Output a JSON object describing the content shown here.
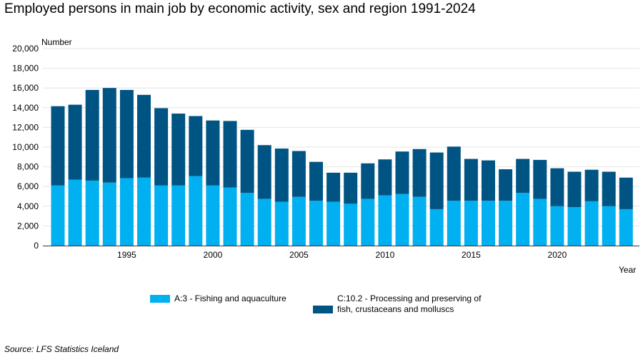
{
  "title": "Employed persons in main job by economic activity, sex and region 1991-2024",
  "source": "Source: LFS Statistics Iceland",
  "colors": {
    "fishing": "#00b0f0",
    "processing": "#005483",
    "grid": "#e4e4e4",
    "axis": "#333333"
  },
  "chart_data": {
    "type": "bar",
    "stacked": true,
    "ylabel": "Number",
    "xlabel": "Year",
    "ylim": [
      0,
      20000
    ],
    "y_ticks": [
      "0",
      "2,000",
      "4,000",
      "6,000",
      "8,000",
      "10,000",
      "12,000",
      "14,000",
      "16,000",
      "18,000",
      "20,000"
    ],
    "x_tick_labels": [
      "1995",
      "2000",
      "2005",
      "2010",
      "2015",
      "2020"
    ],
    "categories": [
      1991,
      1992,
      1993,
      1994,
      1995,
      1996,
      1997,
      1998,
      1999,
      2000,
      2001,
      2002,
      2003,
      2004,
      2005,
      2006,
      2007,
      2008,
      2009,
      2010,
      2011,
      2012,
      2013,
      2014,
      2015,
      2016,
      2017,
      2018,
      2019,
      2020,
      2021,
      2022,
      2023,
      2024
    ],
    "series": [
      {
        "name": "A:3 - Fishing and aquaculture",
        "color": "#00b0f0",
        "values": [
          6100,
          6700,
          6600,
          6400,
          6850,
          6900,
          6100,
          6100,
          7050,
          6100,
          5900,
          5350,
          4750,
          4450,
          4950,
          4550,
          4450,
          4250,
          4750,
          5100,
          5250,
          4950,
          3700,
          4550,
          4550,
          4550,
          4550,
          5350,
          4750,
          4000,
          3900,
          4500,
          4000,
          3700
        ]
      },
      {
        "name": "C:10.2 - Processing and preserving of fish, crustaceans and molluscs",
        "color": "#005483",
        "values": [
          8050,
          7600,
          9200,
          9600,
          8950,
          8400,
          7850,
          7300,
          6100,
          6600,
          6750,
          6400,
          5450,
          5400,
          4650,
          3950,
          2950,
          3150,
          3600,
          3650,
          4300,
          4850,
          5750,
          5500,
          4250,
          4100,
          3200,
          3450,
          3950,
          3850,
          3600,
          3200,
          3500,
          3200
        ]
      }
    ]
  }
}
